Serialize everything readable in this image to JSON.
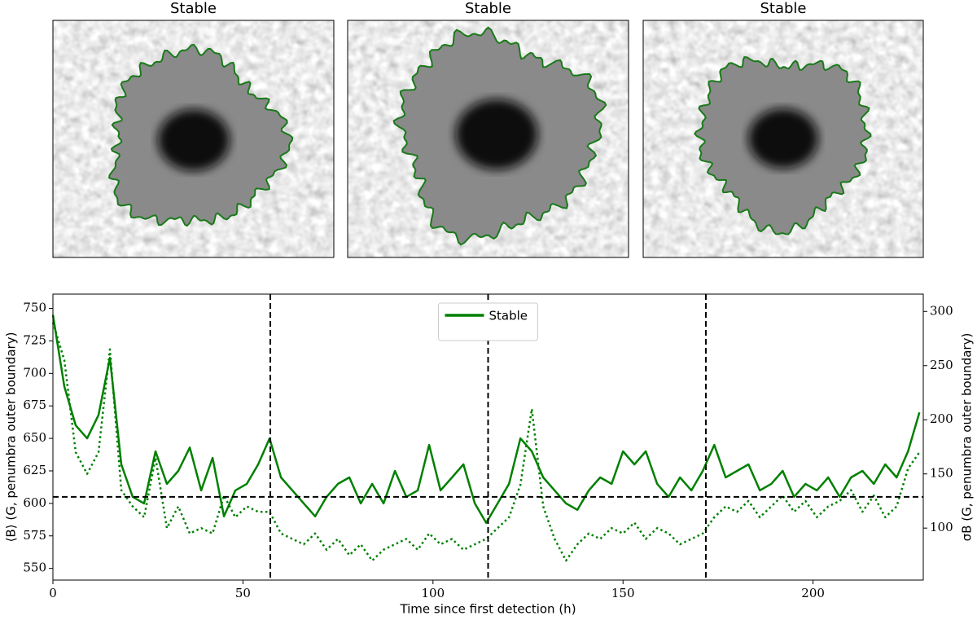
{
  "images": [
    {
      "title": "Stable"
    },
    {
      "title": "Stable"
    },
    {
      "title": "Stable"
    }
  ],
  "chart_data": {
    "type": "line",
    "xlabel": "Time since first detection (h)",
    "ylabel": "⟨B⟩ (G, penumbra outer boundary)",
    "y2label": "σB (G, penumbra outer boundary)",
    "xlim": [
      0,
      229
    ],
    "xticks": [
      0,
      50,
      100,
      150,
      200
    ],
    "ylim": [
      541,
      761
    ],
    "yticks": [
      550,
      575,
      600,
      625,
      650,
      675,
      700,
      725,
      750
    ],
    "y2lim": [
      52,
      316
    ],
    "y2ticks": [
      100,
      150,
      200,
      250,
      300
    ],
    "legend": "upper center",
    "vlines": [
      57.2,
      114.5,
      171.8
    ],
    "hline": 605,
    "x": [
      0,
      3,
      6,
      9,
      12,
      15,
      18,
      21,
      24,
      27,
      30,
      33,
      36,
      39,
      42,
      45,
      48,
      51,
      54,
      57,
      60,
      63,
      66,
      69,
      72,
      75,
      78,
      81,
      84,
      87,
      90,
      93,
      96,
      99,
      102,
      105,
      108,
      111,
      114,
      117,
      120,
      123,
      126,
      129,
      132,
      135,
      138,
      141,
      144,
      147,
      150,
      153,
      156,
      159,
      162,
      165,
      168,
      171,
      174,
      177,
      180,
      183,
      186,
      189,
      192,
      195,
      198,
      201,
      204,
      207,
      210,
      213,
      216,
      219,
      222,
      225,
      228
    ],
    "series": [
      {
        "name": "Stable",
        "color": "#008000",
        "style": "solid",
        "values": [
          745,
          690,
          660,
          650,
          668,
          712,
          630,
          605,
          600,
          640,
          615,
          625,
          643,
          610,
          635,
          590,
          610,
          615,
          630,
          650,
          620,
          610,
          600,
          590,
          605,
          615,
          620,
          600,
          615,
          600,
          625,
          605,
          610,
          645,
          610,
          620,
          630,
          600,
          585,
          600,
          615,
          650,
          640,
          620,
          610,
          600,
          595,
          610,
          620,
          615,
          640,
          630,
          640,
          615,
          605,
          620,
          610,
          625,
          645,
          620,
          625,
          630,
          610,
          615,
          625,
          605,
          615,
          610,
          620,
          605,
          620,
          625,
          615,
          630,
          620,
          640,
          670
        ]
      },
      {
        "color": "#008000",
        "style": "dotted",
        "axis": "y2",
        "values": [
          290,
          255,
          170,
          150,
          170,
          265,
          135,
          120,
          110,
          165,
          100,
          120,
          95,
          100,
          95,
          130,
          110,
          120,
          115,
          115,
          95,
          90,
          85,
          95,
          80,
          90,
          75,
          85,
          70,
          80,
          85,
          90,
          80,
          95,
          85,
          90,
          80,
          85,
          90,
          100,
          110,
          140,
          210,
          120,
          90,
          70,
          85,
          95,
          90,
          100,
          95,
          105,
          90,
          100,
          95,
          85,
          90,
          95,
          110,
          120,
          115,
          125,
          110,
          120,
          130,
          115,
          125,
          110,
          120,
          125,
          135,
          115,
          130,
          110,
          120,
          155,
          170
        ]
      }
    ]
  }
}
